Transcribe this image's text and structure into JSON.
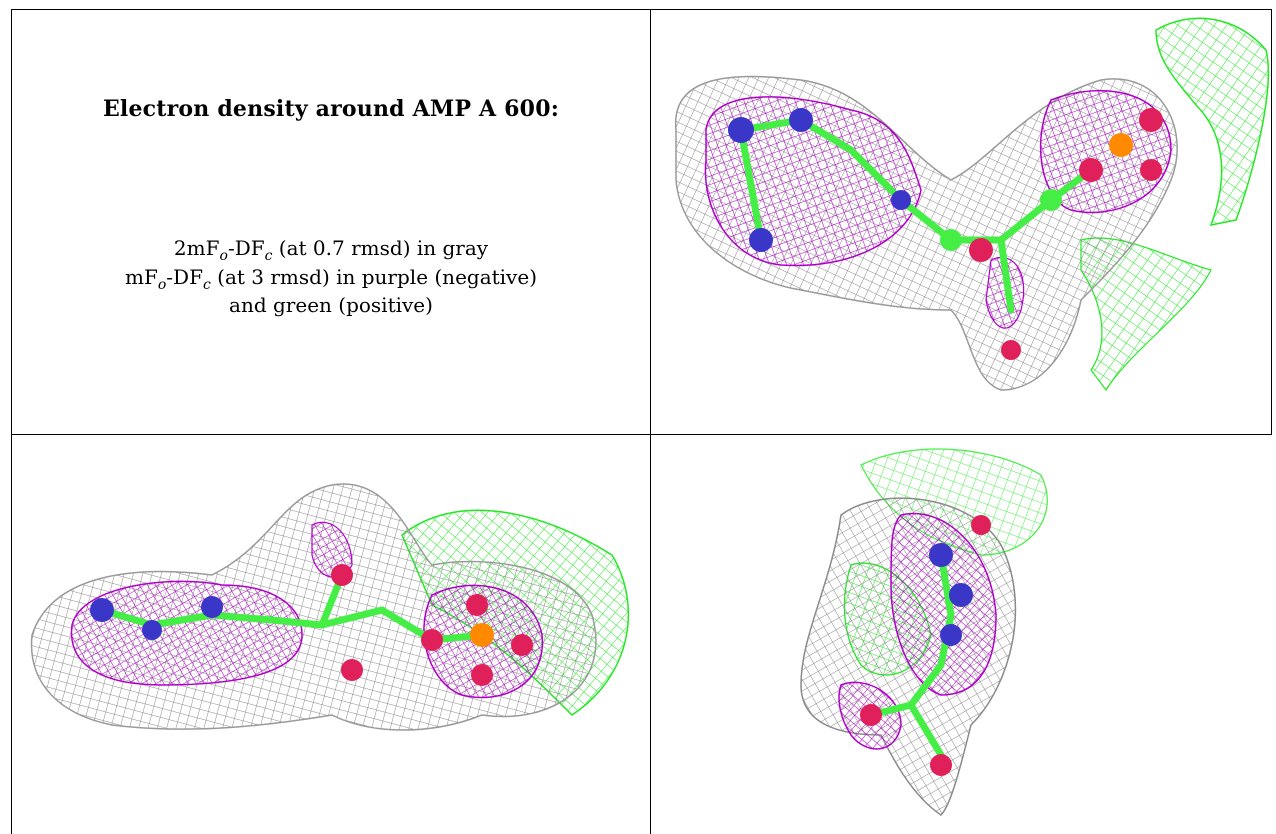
{
  "caption": {
    "title": "Electron density around AMP A 600:",
    "map1_prefix": "2mF",
    "map1_sub_o": "o",
    "map1_mid": "-DF",
    "map1_sub_c": "c",
    "map1_suffix": " (at 0.7 rmsd) in gray",
    "map2_prefix": "mF",
    "map2_sub_o": "o",
    "map2_mid": "-DF",
    "map2_sub_c": "c",
    "map2_suffix": " (at 3 rmsd) in purple (negative)",
    "line3": "and green (positive)"
  },
  "colors": {
    "gray_mesh": "#8a8a8a",
    "purple_mesh": "#b000c8",
    "green_mesh": "#22e822",
    "carbon": "#44ee44",
    "nitrogen": "#3a36c8",
    "oxygen": "#e0205a",
    "phosphorus": "#ff8a00"
  },
  "panels": [
    {
      "name": "top-right view",
      "icon": "density-map-view"
    },
    {
      "name": "bottom-left view",
      "icon": "density-map-view"
    },
    {
      "name": "bottom-right view",
      "icon": "density-map-view"
    }
  ]
}
